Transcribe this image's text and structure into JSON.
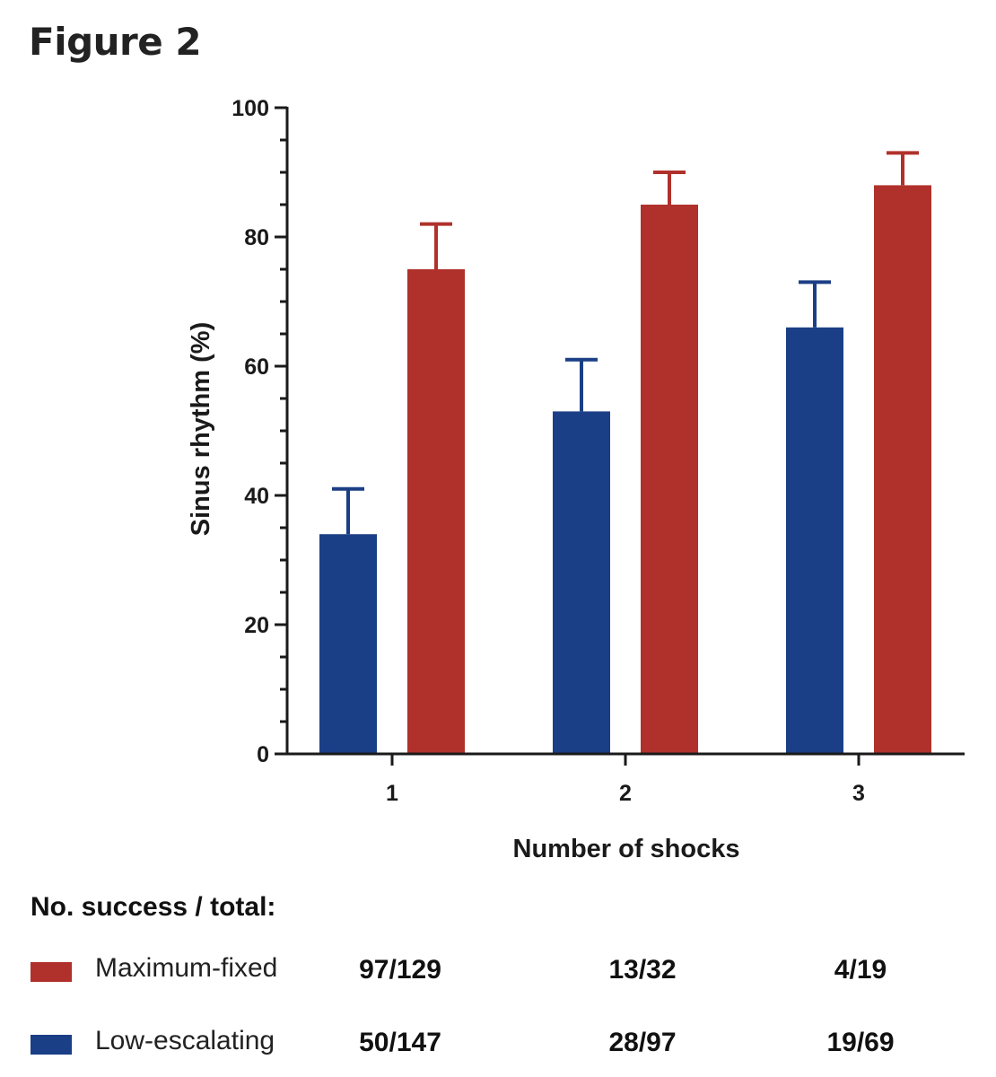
{
  "figure_title": "Figure 2",
  "colors": {
    "maximum_fixed": "#b0312b",
    "low_escalating": "#1b3f86",
    "axis": "#1a1a1a"
  },
  "chart_data": {
    "type": "bar",
    "title": "",
    "xlabel": "Number of shocks",
    "ylabel": "Sinus rhythm (%)",
    "categories": [
      "1",
      "2",
      "3"
    ],
    "ylim": [
      0,
      100
    ],
    "yticks": [
      "0",
      "20",
      "40",
      "60",
      "80",
      "100"
    ],
    "series": [
      {
        "name": "Low-escalating",
        "values": [
          34,
          53,
          66
        ],
        "error_upper": [
          41,
          61,
          73
        ]
      },
      {
        "name": "Maximum-fixed",
        "values": [
          75,
          85,
          88
        ],
        "error_upper": [
          82,
          90,
          93
        ]
      }
    ]
  },
  "table": {
    "title": "No. success / total:",
    "rows": [
      {
        "name": "Maximum-fixed",
        "counts": [
          "97/129",
          "13/32",
          "4/19"
        ]
      },
      {
        "name": "Low-escalating",
        "counts": [
          "50/147",
          "28/97",
          "19/69"
        ]
      }
    ]
  }
}
